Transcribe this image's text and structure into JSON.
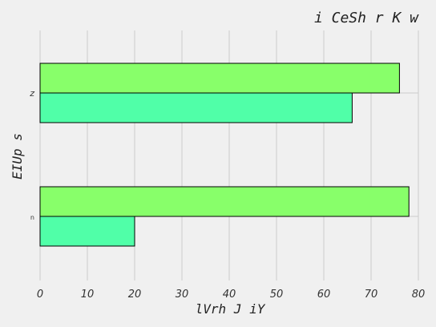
{
  "chart_data": {
    "type": "bar",
    "orientation": "horizontal",
    "title": "i CeSh r K w",
    "xlabel": "lVrh J iY",
    "ylabel": "EIUp s",
    "categories": [
      "n",
      "z"
    ],
    "series": [
      {
        "values": [
          20,
          66
        ],
        "color": "#50ffa8"
      },
      {
        "values": [
          78,
          76
        ],
        "color": "#88ff6a"
      }
    ],
    "xlim": [
      0,
      80
    ],
    "xticks": [
      0,
      10,
      20,
      30,
      40,
      50,
      60,
      70,
      80
    ],
    "grid": true
  }
}
